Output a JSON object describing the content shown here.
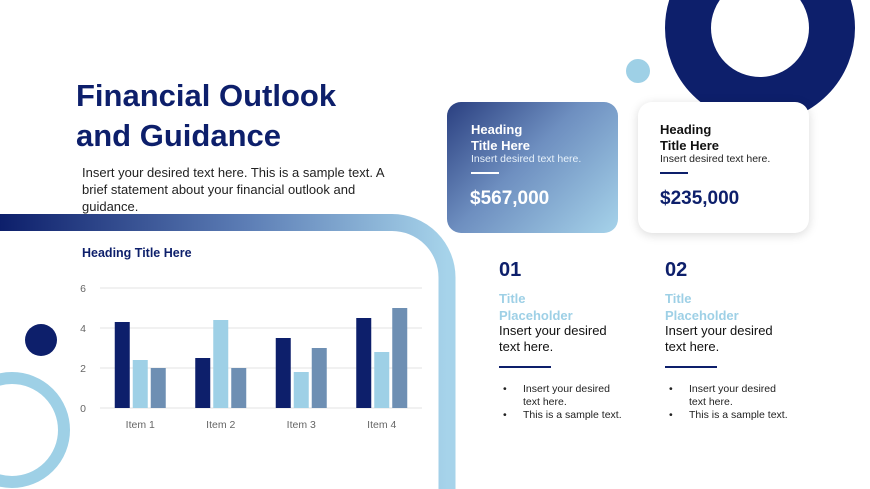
{
  "title_line1": "Financial Outlook",
  "title_line2": "and Guidance",
  "subtitle": "Insert your desired text here. This is a sample text. A brief statement about your financial outlook and guidance.",
  "colors": {
    "navy": "#0d1f6b",
    "light_blue": "#9ed0e6",
    "steel_blue": "#6e8fb3"
  },
  "cards": [
    {
      "heading_line1": "Heading",
      "heading_line2": "Title Here",
      "sub": "Insert desired text here.",
      "value": "$567,000"
    },
    {
      "heading_line1": "Heading",
      "heading_line2": "Title Here",
      "sub": "Insert desired text here.",
      "value": "$235,000"
    }
  ],
  "chart_heading": "Heading Title  Here",
  "chart_data": {
    "type": "bar",
    "categories": [
      "Item 1",
      "Item 2",
      "Item 3",
      "Item 4"
    ],
    "series": [
      {
        "values": [
          4.3,
          2.5,
          3.5,
          4.5
        ],
        "color": "#0d1f6b"
      },
      {
        "values": [
          2.4,
          4.4,
          1.8,
          2.8
        ],
        "color": "#9ed0e6"
      },
      {
        "values": [
          2.0,
          2.0,
          3.0,
          5.0
        ],
        "color": "#6e8fb3"
      }
    ],
    "ylim": [
      0,
      6
    ],
    "yticks": [
      "0",
      "2",
      "4",
      "6"
    ],
    "grid": true
  },
  "placeholders": [
    {
      "number": "01",
      "title_line1": "Title",
      "title_line2": "Placeholder",
      "text": "Insert your desired text here.",
      "bullets": [
        "Insert your desired text here.",
        "This is a sample text."
      ]
    },
    {
      "number": "02",
      "title_line1": "Title",
      "title_line2": "Placeholder",
      "text": "Insert your desired text here.",
      "bullets": [
        "Insert your desired text here.",
        "This is a sample text."
      ]
    }
  ]
}
